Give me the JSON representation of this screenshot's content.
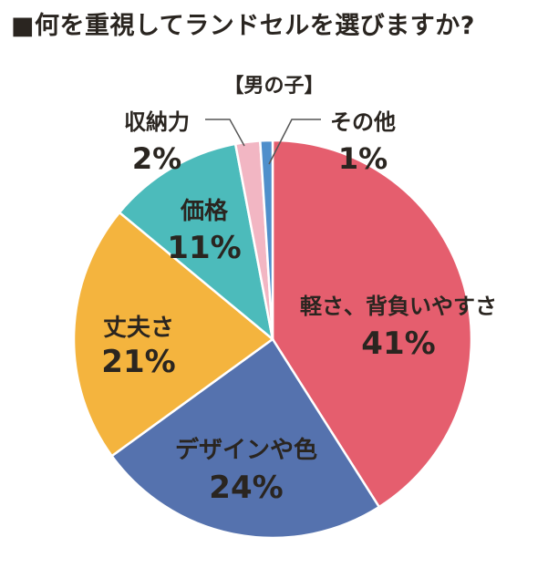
{
  "chart_data": {
    "type": "pie",
    "title": "■何を重視してランドセルを選びますか?",
    "subtitle": "【男の子】",
    "slices": [
      {
        "label": "軽さ、背負いやすさ",
        "value": 41,
        "value_label": "41%",
        "color": "#E55E6E"
      },
      {
        "label": "デザインや色",
        "value": 24,
        "value_label": "24%",
        "color": "#5572AE"
      },
      {
        "label": "丈夫さ",
        "value": 21,
        "value_label": "21%",
        "color": "#F4B43E"
      },
      {
        "label": "価格",
        "value": 11,
        "value_label": "11%",
        "color": "#4CBBBB"
      },
      {
        "label": "収納力",
        "value": 2,
        "value_label": "2%",
        "color": "#F2B6C3"
      },
      {
        "label": "その他",
        "value": 1,
        "value_label": "1%",
        "color": "#4F8FCB"
      }
    ],
    "start_angle": "12 o'clock",
    "direction": "clockwise",
    "legend": "none"
  }
}
